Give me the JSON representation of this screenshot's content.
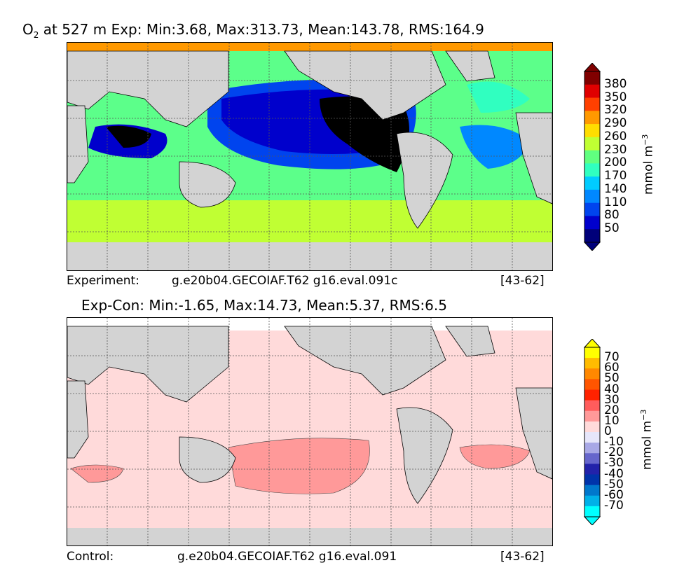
{
  "top": {
    "title_species": "O",
    "title_sub": "2",
    "title_rest": " at 527 m Exp: Min:3.68, Max:313.73, Mean:143.78, RMS:164.9",
    "caption_left": "Experiment:",
    "caption_mid": "g.e20b04.GECOIAF.T62 g16.eval.091c",
    "caption_right": "[43-62]",
    "colorbar_unit": "mmol m",
    "colorbar_unit_exp": "−3",
    "colorbar_ticks": [
      "380",
      "350",
      "320",
      "290",
      "260",
      "230",
      "200",
      "170",
      "140",
      "110",
      "80",
      "50"
    ],
    "colorbar_colors": [
      "#800000",
      "#e00000",
      "#ff4000",
      "#ff9900",
      "#ffdd00",
      "#c0ff33",
      "#60ff80",
      "#30ffc0",
      "#00ccff",
      "#0088ff",
      "#0044ee",
      "#0000cc",
      "#00007a"
    ]
  },
  "bottom": {
    "title": "Exp-Con: Min:-1.65, Max:14.73, Mean:5.37, RMS:6.5",
    "caption_left": "Control:",
    "caption_mid": "g.e20b04.GECOIAF.T62 g16.eval.091",
    "caption_right": "[43-62]",
    "colorbar_unit": "mmol m",
    "colorbar_unit_exp": "−3",
    "colorbar_ticks": [
      "70",
      "60",
      "50",
      "40",
      "30",
      "20",
      "10",
      "0",
      "-10",
      "-20",
      "-30",
      "-40",
      "-50",
      "-60",
      "-70"
    ],
    "colorbar_colors": [
      "#ffff00",
      "#ffbb00",
      "#ff8800",
      "#ff5500",
      "#ff2200",
      "#ff5c5c",
      "#ff9999",
      "#ffdada",
      "#e6e6fa",
      "#a8a8e6",
      "#6666cc",
      "#2222aa",
      "#0033aa",
      "#0077cc",
      "#00b0e8",
      "#00ffff"
    ]
  },
  "colors": {
    "land": "#d3d3d3",
    "coast": "#000000",
    "grid": "#555555"
  }
}
